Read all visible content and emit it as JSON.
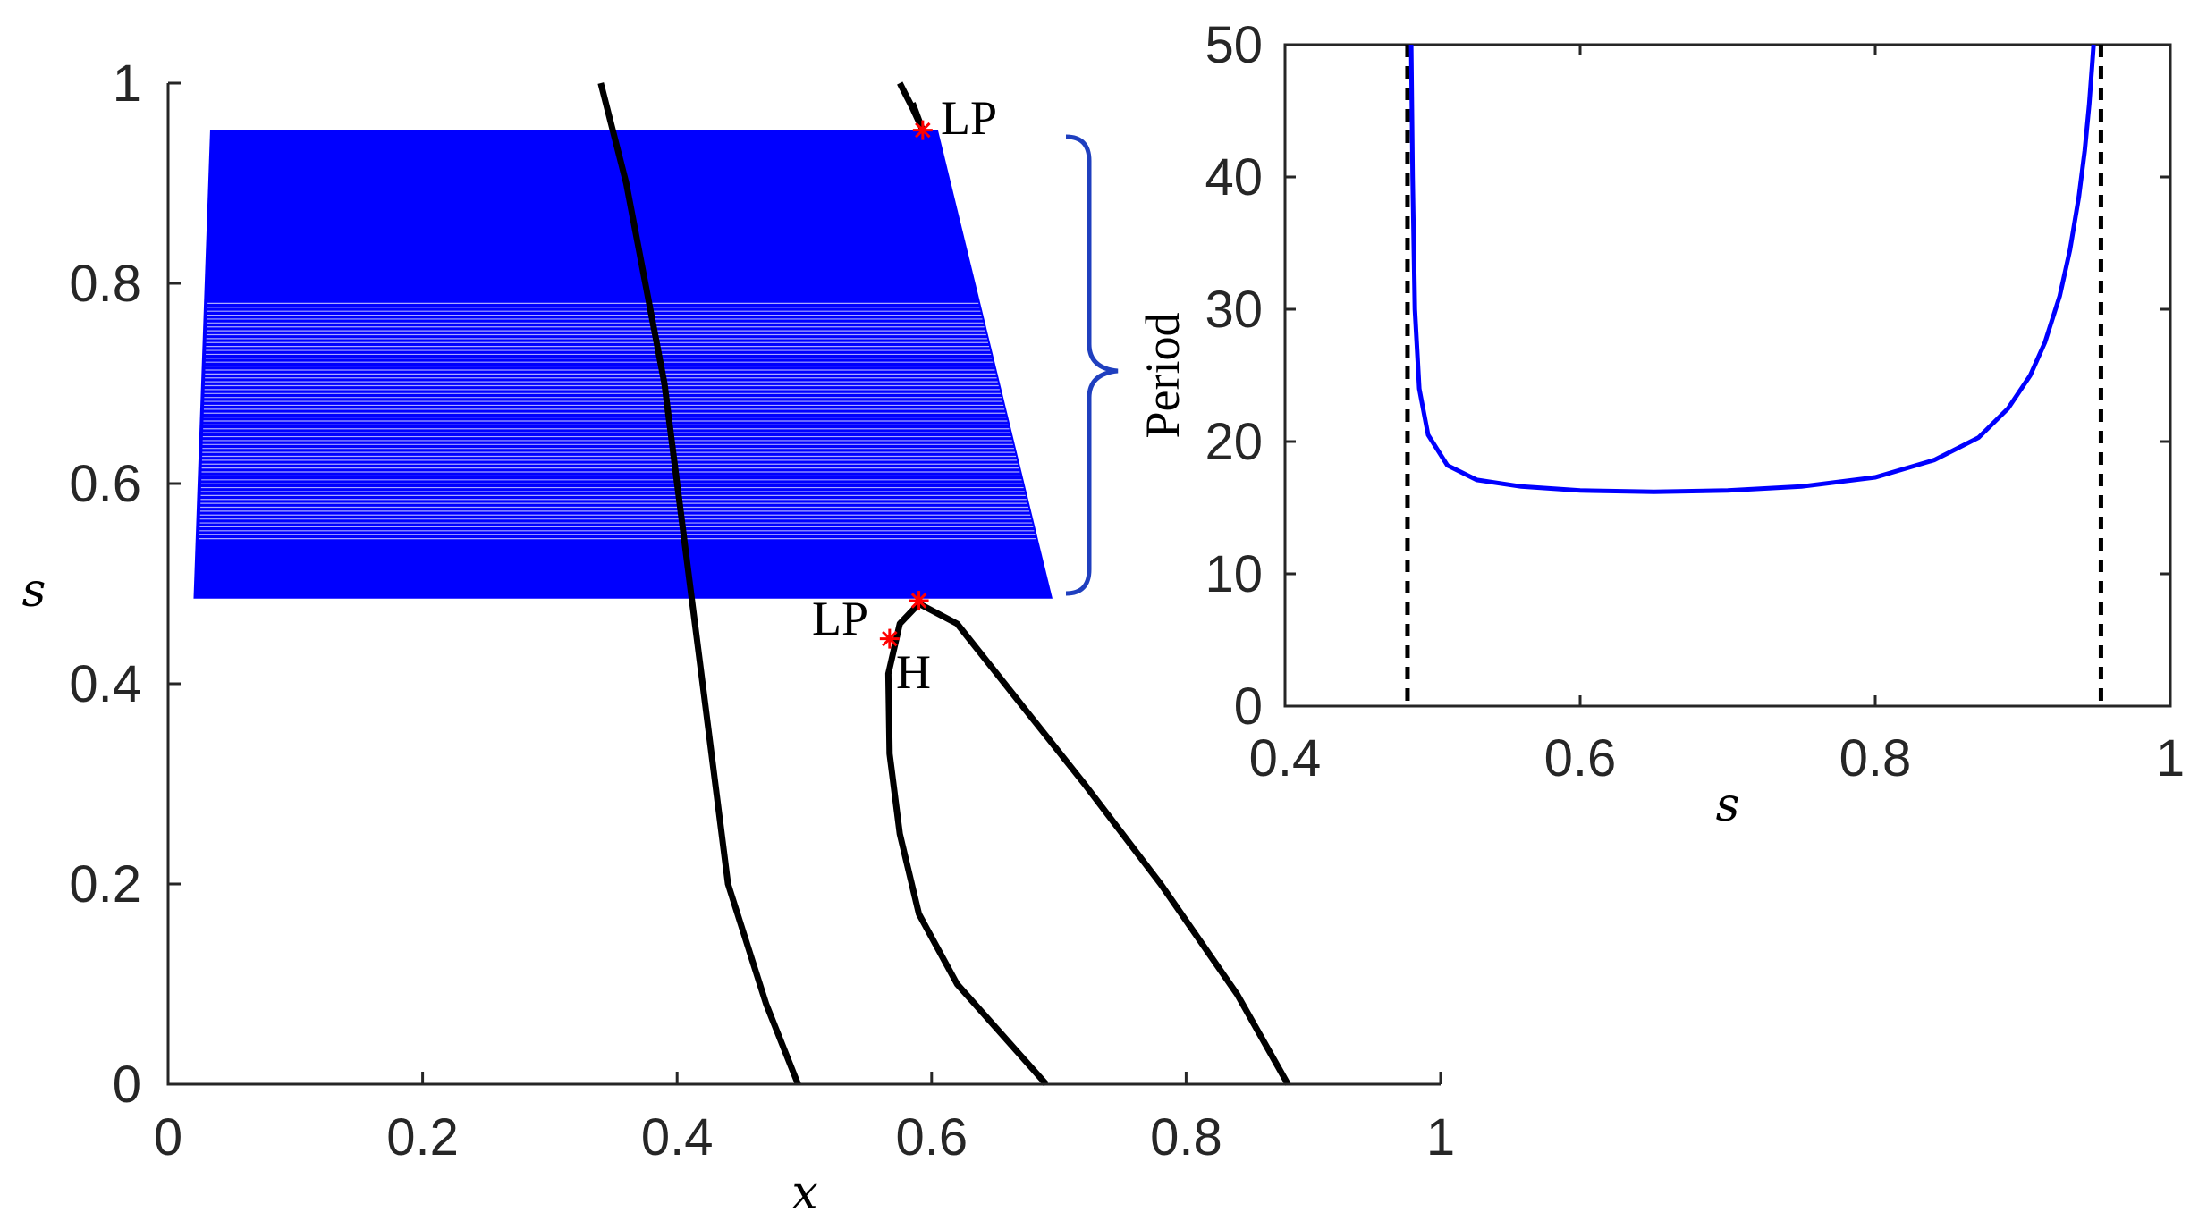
{
  "chart_data": [
    {
      "type": "line",
      "xlabel": "x",
      "ylabel": "s",
      "xlim": [
        0,
        1
      ],
      "ylim": [
        0,
        1
      ],
      "xticks": [
        "0",
        "0.2",
        "0.4",
        "0.6",
        "0.8",
        "1"
      ],
      "yticks": [
        "0",
        "0.2",
        "0.4",
        "0.6",
        "0.8",
        "1"
      ],
      "grid": false,
      "colors": {
        "curve": "#000000",
        "periodic_orbits": "#0000ff",
        "special_point": "#ff0000",
        "bracket": "#1f3fbf"
      },
      "series": [
        {
          "style": "solid-black",
          "x": [
            0.34,
            0.36,
            0.39,
            0.41,
            0.42,
            0.44,
            0.47,
            0.495
          ],
          "y": [
            1.0,
            0.9,
            0.7,
            0.5,
            0.4,
            0.2,
            0.08,
            0.0
          ]
        },
        {
          "style": "solid-black",
          "x": [
            0.575,
            0.585,
            0.593
          ],
          "y": [
            1.0,
            0.975,
            0.953
          ]
        },
        {
          "style": "solid-black",
          "x": [
            0.585,
            0.593
          ],
          "y": [
            0.98,
            0.953
          ]
        },
        {
          "style": "solid-black",
          "x": [
            0.69,
            0.62,
            0.59,
            0.575,
            0.567,
            0.566,
            0.575,
            0.59,
            0.62,
            0.67,
            0.72,
            0.78,
            0.84,
            0.88
          ],
          "y": [
            0.0,
            0.1,
            0.17,
            0.25,
            0.33,
            0.41,
            0.46,
            0.48,
            0.46,
            0.38,
            0.3,
            0.2,
            0.09,
            0.0
          ]
        }
      ],
      "periodic_orbit_band": {
        "s_range": [
          0.485,
          0.953
        ],
        "x_left": [
          0.02,
          0.033
        ],
        "x_right": [
          0.695,
          0.605
        ]
      },
      "special_points": [
        {
          "label": "LP",
          "x": 0.593,
          "y": 0.953
        },
        {
          "label": "LP",
          "x": 0.59,
          "y": 0.483
        },
        {
          "label": "H",
          "x": 0.567,
          "y": 0.445
        }
      ]
    },
    {
      "type": "line",
      "xlabel": "s",
      "ylabel": "Period",
      "xlim": [
        0.4,
        1
      ],
      "ylim": [
        0,
        50
      ],
      "xticks": [
        "0.4",
        "0.6",
        "0.8",
        "1"
      ],
      "yticks": [
        "0",
        "10",
        "20",
        "30",
        "40",
        "50"
      ],
      "grid": false,
      "series": [
        {
          "style": "solid-blue",
          "x": [
            0.4855,
            0.4865,
            0.488,
            0.491,
            0.497,
            0.51,
            0.53,
            0.56,
            0.6,
            0.65,
            0.7,
            0.75,
            0.8,
            0.84,
            0.87,
            0.89,
            0.905,
            0.915,
            0.925,
            0.932,
            0.938,
            0.942,
            0.945,
            0.947,
            0.948
          ],
          "y": [
            50,
            40,
            30,
            24,
            20.5,
            18.2,
            17.1,
            16.6,
            16.3,
            16.2,
            16.3,
            16.6,
            17.3,
            18.6,
            20.3,
            22.5,
            25,
            27.5,
            31,
            34.5,
            38.5,
            42,
            45.5,
            48.5,
            50
          ]
        }
      ],
      "reference_lines": [
        {
          "style": "dashed-black",
          "s": 0.483
        },
        {
          "style": "dashed-black",
          "s": 0.953
        }
      ]
    }
  ]
}
